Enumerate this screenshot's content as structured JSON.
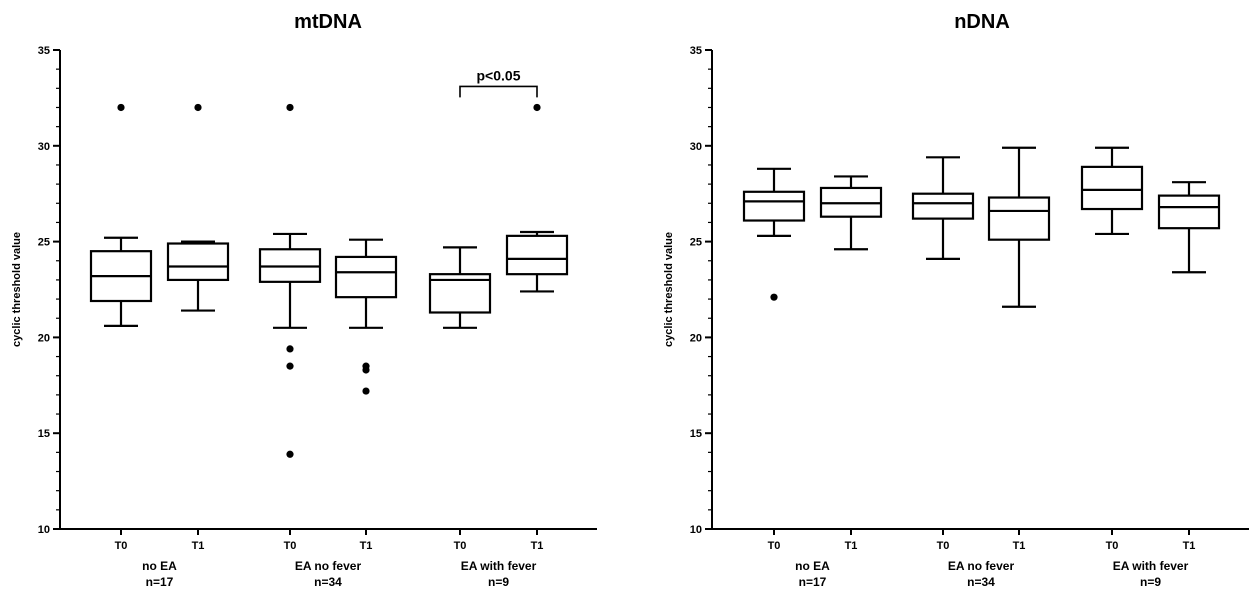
{
  "chart_data": [
    {
      "type": "box",
      "title": "mtDNA",
      "ylabel": "cyclic threshold value",
      "ylim": [
        10,
        35
      ],
      "yticks": [
        10,
        15,
        20,
        25,
        30,
        35
      ],
      "groups": [
        {
          "label": "no EA",
          "n": "n=17"
        },
        {
          "label": "EA no fever",
          "n": "n=34"
        },
        {
          "label": "EA with fever",
          "n": "n=9"
        }
      ],
      "boxes": [
        {
          "group": 0,
          "time": "T0",
          "whisker_low": 20.6,
          "q1": 21.9,
          "median": 23.2,
          "q3": 24.5,
          "whisker_high": 25.2,
          "outliers": [
            32.0
          ]
        },
        {
          "group": 0,
          "time": "T1",
          "whisker_low": 21.4,
          "q1": 23.0,
          "median": 23.7,
          "q3": 24.9,
          "whisker_high": 25.0,
          "outliers": [
            32.0
          ]
        },
        {
          "group": 1,
          "time": "T0",
          "whisker_low": 20.5,
          "q1": 22.9,
          "median": 23.7,
          "q3": 24.6,
          "whisker_high": 25.4,
          "outliers": [
            32.0,
            19.4,
            18.5,
            13.9
          ]
        },
        {
          "group": 1,
          "time": "T1",
          "whisker_low": 20.5,
          "q1": 22.1,
          "median": 23.4,
          "q3": 24.2,
          "whisker_high": 25.1,
          "outliers": [
            18.5,
            18.3,
            17.2
          ]
        },
        {
          "group": 2,
          "time": "T0",
          "whisker_low": 20.5,
          "q1": 21.3,
          "median": 23.0,
          "q3": 23.3,
          "whisker_high": 24.7,
          "outliers": []
        },
        {
          "group": 2,
          "time": "T1",
          "whisker_low": 22.4,
          "q1": 23.3,
          "median": 24.1,
          "q3": 25.3,
          "whisker_high": 25.5,
          "outliers": [
            32.0
          ]
        }
      ],
      "annotation": {
        "text": "p<0.05",
        "group": 2,
        "y": 33.1
      }
    },
    {
      "type": "box",
      "title": "nDNA",
      "ylabel": "cyclic threshold value",
      "ylim": [
        10,
        35
      ],
      "yticks": [
        10,
        15,
        20,
        25,
        30,
        35
      ],
      "groups": [
        {
          "label": "no EA",
          "n": "n=17"
        },
        {
          "label": "EA no fever",
          "n": "n=34"
        },
        {
          "label": "EA with fever",
          "n": "n=9"
        }
      ],
      "boxes": [
        {
          "group": 0,
          "time": "T0",
          "whisker_low": 25.3,
          "q1": 26.1,
          "median": 27.1,
          "q3": 27.6,
          "whisker_high": 28.8,
          "outliers": [
            22.1
          ]
        },
        {
          "group": 0,
          "time": "T1",
          "whisker_low": 24.6,
          "q1": 26.3,
          "median": 27.0,
          "q3": 27.8,
          "whisker_high": 28.4,
          "outliers": []
        },
        {
          "group": 1,
          "time": "T0",
          "whisker_low": 24.1,
          "q1": 26.2,
          "median": 27.0,
          "q3": 27.5,
          "whisker_high": 29.4,
          "outliers": []
        },
        {
          "group": 1,
          "time": "T1",
          "whisker_low": 21.6,
          "q1": 25.1,
          "median": 26.6,
          "q3": 27.3,
          "whisker_high": 29.9,
          "outliers": []
        },
        {
          "group": 2,
          "time": "T0",
          "whisker_low": 25.4,
          "q1": 26.7,
          "median": 27.7,
          "q3": 28.9,
          "whisker_high": 29.9,
          "outliers": []
        },
        {
          "group": 2,
          "time": "T1",
          "whisker_low": 23.4,
          "q1": 25.7,
          "median": 26.8,
          "q3": 27.4,
          "whisker_high": 28.1,
          "outliers": []
        }
      ],
      "annotation": null
    }
  ]
}
